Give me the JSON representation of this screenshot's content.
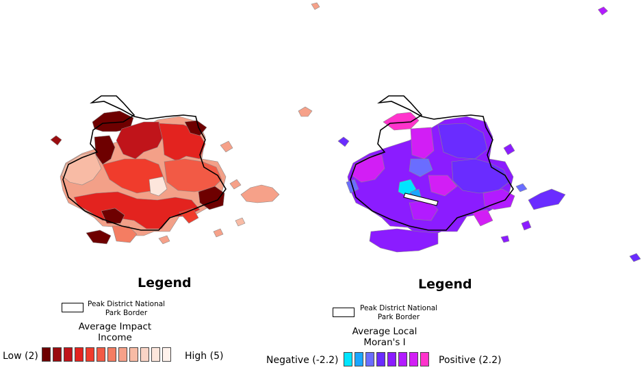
{
  "left_panel": {
    "legend_title": "Legend",
    "border_label_line1": "Peak District National",
    "border_label_line2": "Park Border",
    "variable_line1": "Average Impact",
    "variable_line2": "Income",
    "low_label": "Low (2)",
    "high_label": "High (5)",
    "ramp_colors": [
      "#6e0000",
      "#9a0c0f",
      "#c0141a",
      "#e3231f",
      "#f03c2c",
      "#f25a45",
      "#f47d62",
      "#f6a189",
      "#f8bba5",
      "#fad4c6",
      "#fde6dc",
      "#fff2ec"
    ]
  },
  "right_panel": {
    "legend_title": "Legend",
    "border_label_line1": "Peak District National",
    "border_label_line2": "Park Border",
    "variable_line1": "Average Local",
    "variable_line2": "Moran's I",
    "low_label": "Negative (-2.2)",
    "high_label": "Positive (2.2)",
    "ramp_colors": [
      "#00e5ff",
      "#1aa6ff",
      "#6a6dff",
      "#6a2cff",
      "#8b1cff",
      "#b21bff",
      "#d21ef5",
      "#ff33cc"
    ]
  },
  "map_colors": {
    "park_border": "#000000",
    "district_stroke": "#888888"
  }
}
